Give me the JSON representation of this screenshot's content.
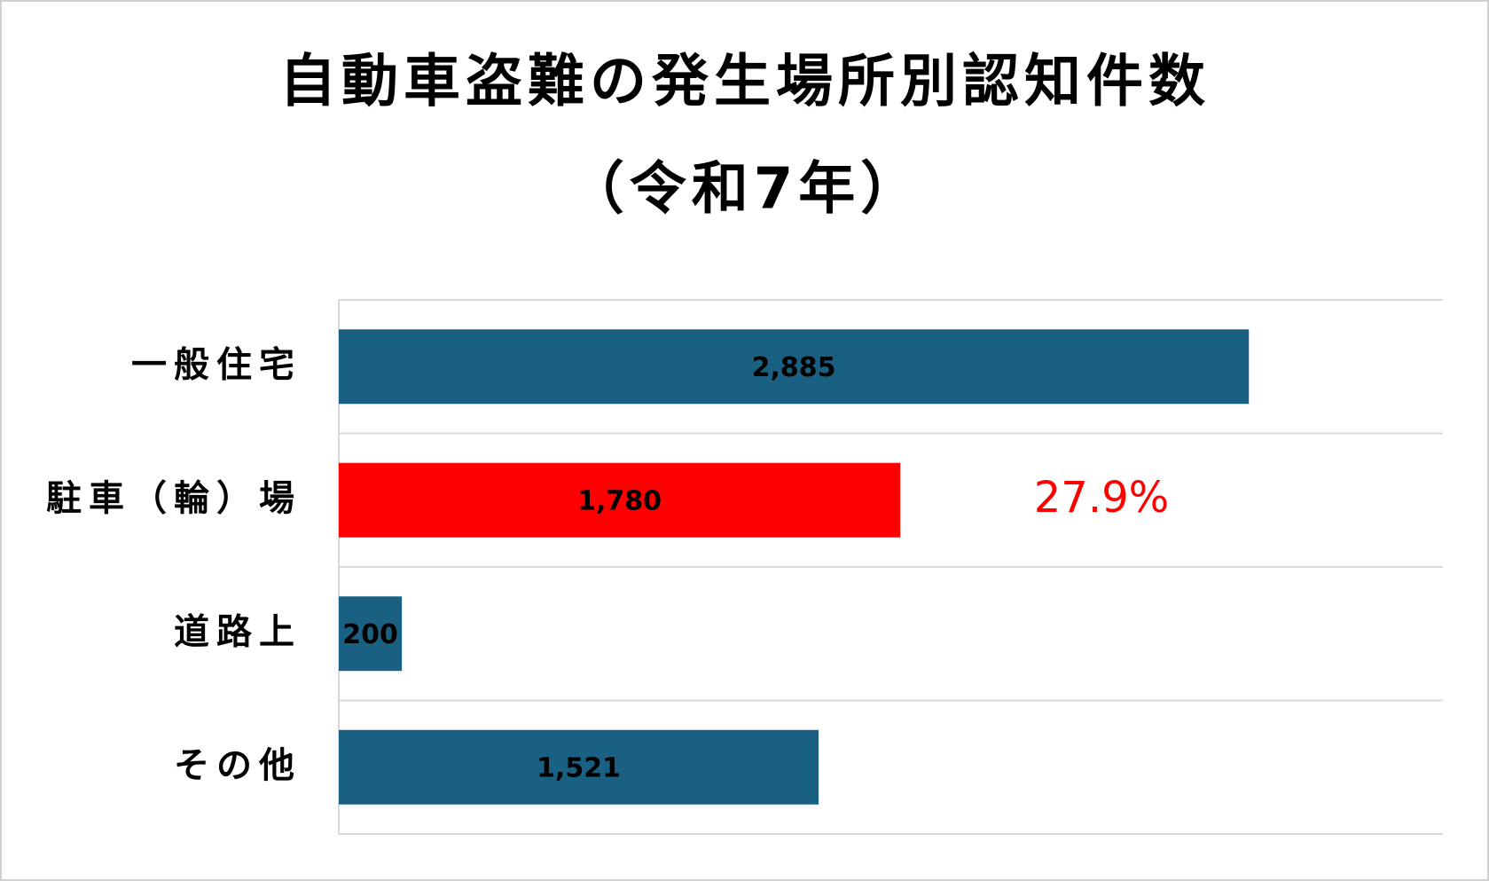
{
  "chart_data": {
    "type": "bar",
    "orientation": "horizontal",
    "title": "自動車盗難の発生場所別認知件数",
    "subtitle": "（令和7年）",
    "categories": [
      "一般住宅",
      "駐車（輪）場",
      "道路上",
      "その他"
    ],
    "values": [
      2885,
      1780,
      200,
      1521
    ],
    "value_labels": [
      "2,885",
      "1,780",
      "200",
      "1,521"
    ],
    "colors": [
      "#1a6083",
      "#ff0000",
      "#1a6083",
      "#1a6083"
    ],
    "xlim": [
      0,
      3500
    ],
    "annotation": {
      "text": "27.9%",
      "category": 1,
      "color": "#ff0000"
    }
  }
}
